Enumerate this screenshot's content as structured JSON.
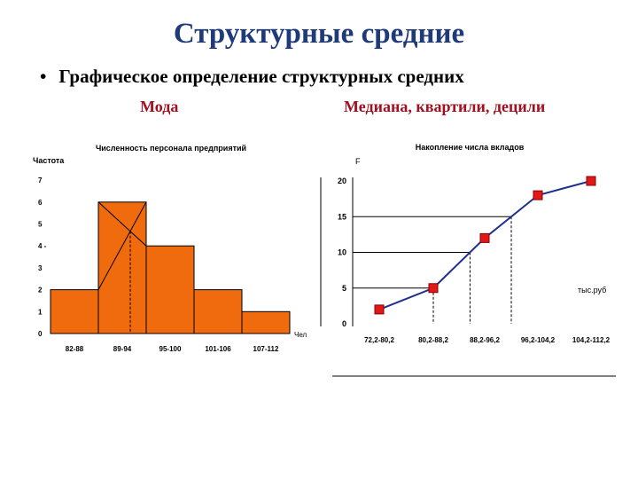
{
  "slide": {
    "title": "Структурные средние",
    "bullet": "Графическое определение структурных средних",
    "left_label": "Мода",
    "right_label": "Медиана, квартили, децили"
  },
  "colors": {
    "title": "#1f3a78",
    "label": "#a0101f",
    "bar": "#f06a0e",
    "line": "#1f2f8f",
    "marker": "#e01818"
  },
  "chart_data": [
    {
      "type": "bar",
      "title": "Численность персонала предприятий",
      "ylabel": "Частота",
      "xlabel": "Чел",
      "categories": [
        "82-88",
        "89-94",
        "95-100",
        "101-106",
        "107-112"
      ],
      "values": [
        2,
        6,
        4,
        2,
        1
      ],
      "yticks": [
        "0",
        "1",
        "2",
        "3",
        "4 -",
        "5",
        "6",
        "7"
      ],
      "ylim": [
        0,
        7.5
      ]
    },
    {
      "type": "line",
      "title": "Накопление числа вкладов",
      "ylabel": "F",
      "xlabel": "тыс.руб",
      "categories": [
        "72,2-80,2",
        "80,2-88,2",
        "88,2-96,2",
        "96,2-104,2",
        "104,2-112,2"
      ],
      "yticks": [
        "0",
        "5",
        "10",
        "15",
        "20"
      ],
      "ylim": [
        0,
        21
      ],
      "x": [
        76.2,
        84.2,
        92.2,
        100.2,
        108.2
      ],
      "values": [
        2,
        5,
        12,
        18,
        20
      ],
      "reference_levels": [
        5,
        10,
        15
      ]
    }
  ]
}
